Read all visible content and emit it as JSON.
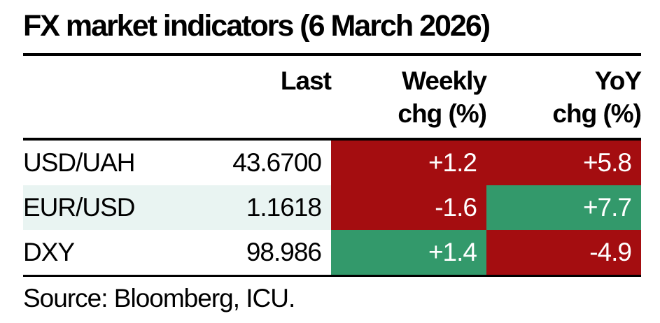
{
  "title": "FX market indicators (6 March 2026)",
  "source": "Source: Bloomberg, ICU.",
  "colors": {
    "negative": "#A40D10",
    "positive": "#33996B",
    "alt_row": "#E9F4F2",
    "rule": "#000000",
    "cell_text": "#FFFFFF"
  },
  "header": {
    "last": "Last",
    "weekly_line1": "Weekly",
    "weekly_line2": "chg (%)",
    "yoy_line1": "YoY",
    "yoy_line2": "chg (%)"
  },
  "table": {
    "rows": [
      {
        "label": "USD/UAH",
        "last": "43.6700",
        "weekly": "+1.2",
        "weekly_color": "negative",
        "yoy": "+5.8",
        "yoy_color": "negative"
      },
      {
        "label": "EUR/USD",
        "last": "1.1618",
        "weekly": "-1.6",
        "weekly_color": "negative",
        "yoy": "+7.7",
        "yoy_color": "positive",
        "row_bg": "alt_row"
      },
      {
        "label": "DXY",
        "last": "98.986",
        "weekly": "+1.4",
        "weekly_color": "positive",
        "yoy": "-4.9",
        "yoy_color": "negative"
      }
    ]
  },
  "chart_data": {
    "type": "table",
    "title": "FX market indicators (6 March 2026)",
    "columns": [
      "",
      "Last",
      "Weekly chg (%)",
      "YoY chg (%)"
    ],
    "rows": [
      [
        "USD/UAH",
        "43.6700",
        "+1.2",
        "+5.8"
      ],
      [
        "EUR/USD",
        "1.1618",
        "-1.6",
        "+7.7"
      ],
      [
        "DXY",
        "98.986",
        "+1.4",
        "-4.9"
      ]
    ],
    "cell_shading": {
      "weekly_chg": [
        "red",
        "red",
        "green"
      ],
      "yoy_chg": [
        "red",
        "green",
        "red"
      ],
      "alt_row_highlight": [
        "",
        "light-blue",
        ""
      ]
    },
    "source": "Source: Bloomberg, ICU."
  }
}
